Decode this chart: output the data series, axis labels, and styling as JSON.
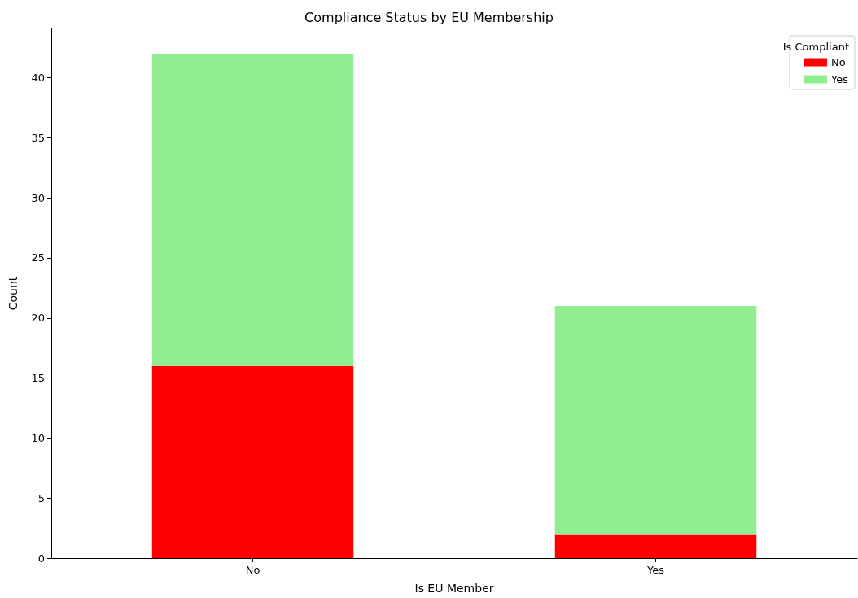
{
  "chart_data": {
    "type": "bar",
    "title": "Compliance Status by EU Membership",
    "xlabel": "Is EU Member",
    "ylabel": "Count",
    "legend_title": "Is Compliant",
    "categories": [
      "No",
      "Yes"
    ],
    "stacked": true,
    "series": [
      {
        "name": "No",
        "color": "#ff0000",
        "values": [
          16,
          2
        ]
      },
      {
        "name": "Yes",
        "color": "#90ee90",
        "values": [
          26,
          19
        ]
      }
    ],
    "ylim": [
      0,
      44.1
    ],
    "yticks": [
      0,
      5,
      10,
      15,
      20,
      25,
      30,
      35,
      40
    ],
    "grid": false,
    "legend": "top right"
  }
}
